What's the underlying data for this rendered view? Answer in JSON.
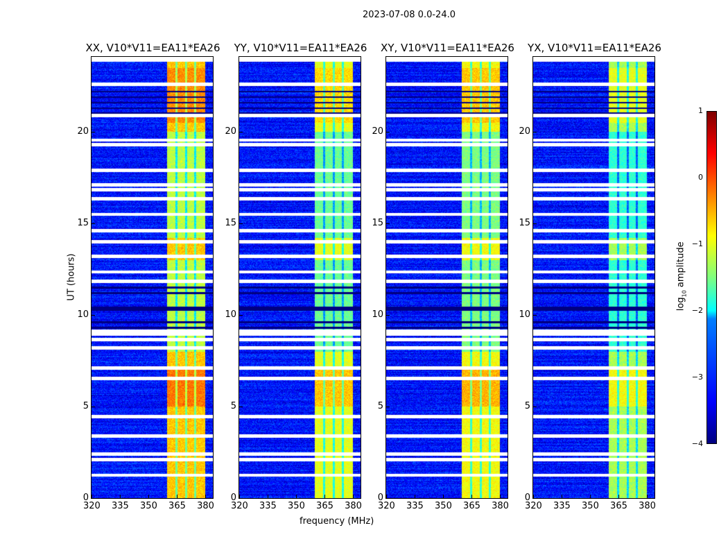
{
  "suptitle": "2023-07-08 0.0-24.0",
  "chart_data": {
    "type": "heatmap",
    "title": "2023-07-08 0.0-24.0",
    "xlabel": "frequency (MHz)",
    "ylabel": "UT (hours)",
    "xlim": [
      320,
      384
    ],
    "ylim": [
      0,
      24.1
    ],
    "xticks": [
      320,
      335,
      350,
      365,
      380
    ],
    "yticks": [
      0,
      5,
      10,
      15,
      20
    ],
    "panels": [
      {
        "title": "XX, V10*V11=EA11*EA26",
        "band_level": -0.6
      },
      {
        "title": "YY, V10*V11=EA11*EA26",
        "band_level": -1.0
      },
      {
        "title": "XY, V10*V11=EA11*EA26",
        "band_level": -0.9
      },
      {
        "title": "YX, V10*V11=EA11*EA26",
        "band_level": -1.3
      }
    ],
    "background_level": -3.3,
    "bright_band_mhz": [
      360,
      380
    ],
    "channel_gaps_mhz": [
      364.8,
      369.8,
      374.8
    ],
    "flagged_hours": [
      22.6,
      20.9,
      19.55,
      19.3,
      17.9,
      17.1,
      16.85,
      16.35,
      15.5,
      14.6,
      14.0,
      13.2,
      12.35,
      11.85,
      9.1,
      8.95,
      8.65,
      8.2,
      7.1,
      6.55,
      4.45,
      3.4,
      2.4,
      2.1,
      1.25
    ],
    "dark_hours": [
      10.4,
      10.3,
      9.6,
      9.3,
      21.0,
      21.3,
      21.6,
      21.9,
      22.2,
      11.2,
      11.5
    ],
    "colorbar": {
      "label": "log10 amplitude",
      "label_main": "log",
      "label_sub": "10",
      "label_rest": " amplitude",
      "range": [
        -4,
        1
      ],
      "ticks": [
        "1",
        "0",
        "−1",
        "−2",
        "−3",
        "−4"
      ],
      "colormap": "jet"
    }
  }
}
